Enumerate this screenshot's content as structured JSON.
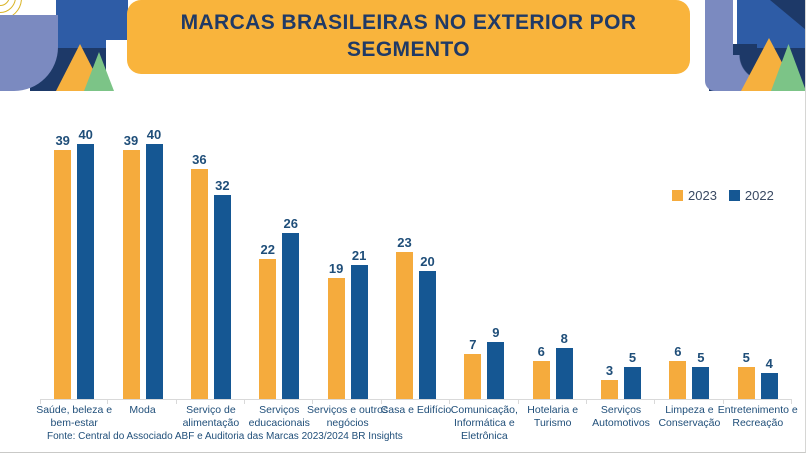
{
  "header": {
    "title_line1": "MARCAS BRASILEIRAS NO EXTERIOR POR",
    "title_line2": "SEGMENTO",
    "banner_color": "#f9b43c",
    "title_color": "#203a66"
  },
  "legend": {
    "items": [
      {
        "label": "2023",
        "color": "#f5ab3d"
      },
      {
        "label": "2022",
        "color": "#155793"
      }
    ]
  },
  "footer": {
    "source": "Fonte: Central do Associado ABF e Auditoria das Marcas 2023/2024 BR Insights"
  },
  "chart_data": {
    "type": "bar",
    "title": "MARCAS BRASILEIRAS NO EXTERIOR POR SEGMENTO",
    "categories": [
      "Saúde, beleza e bem-estar",
      "Moda",
      "Serviço de alimentação",
      "Serviços educacionais",
      "Serviços e outros negócios",
      "Casa e Edifício",
      "Comunicação, Informática e Eletrônica",
      "Hotelaria e Turismo",
      "Serviços Automotivos",
      "Limpeza e Conservação",
      "Entretenimento e Recreação"
    ],
    "series": [
      {
        "name": "2023",
        "color": "#f5ab3d",
        "values": [
          39,
          39,
          36,
          22,
          19,
          23,
          7,
          6,
          3,
          6,
          5
        ]
      },
      {
        "name": "2022",
        "color": "#155793",
        "values": [
          40,
          40,
          32,
          26,
          21,
          20,
          9,
          8,
          5,
          5,
          4
        ]
      }
    ],
    "ylim": [
      0,
      40
    ],
    "grid": false,
    "value_labels": true,
    "legend_position": "right"
  }
}
